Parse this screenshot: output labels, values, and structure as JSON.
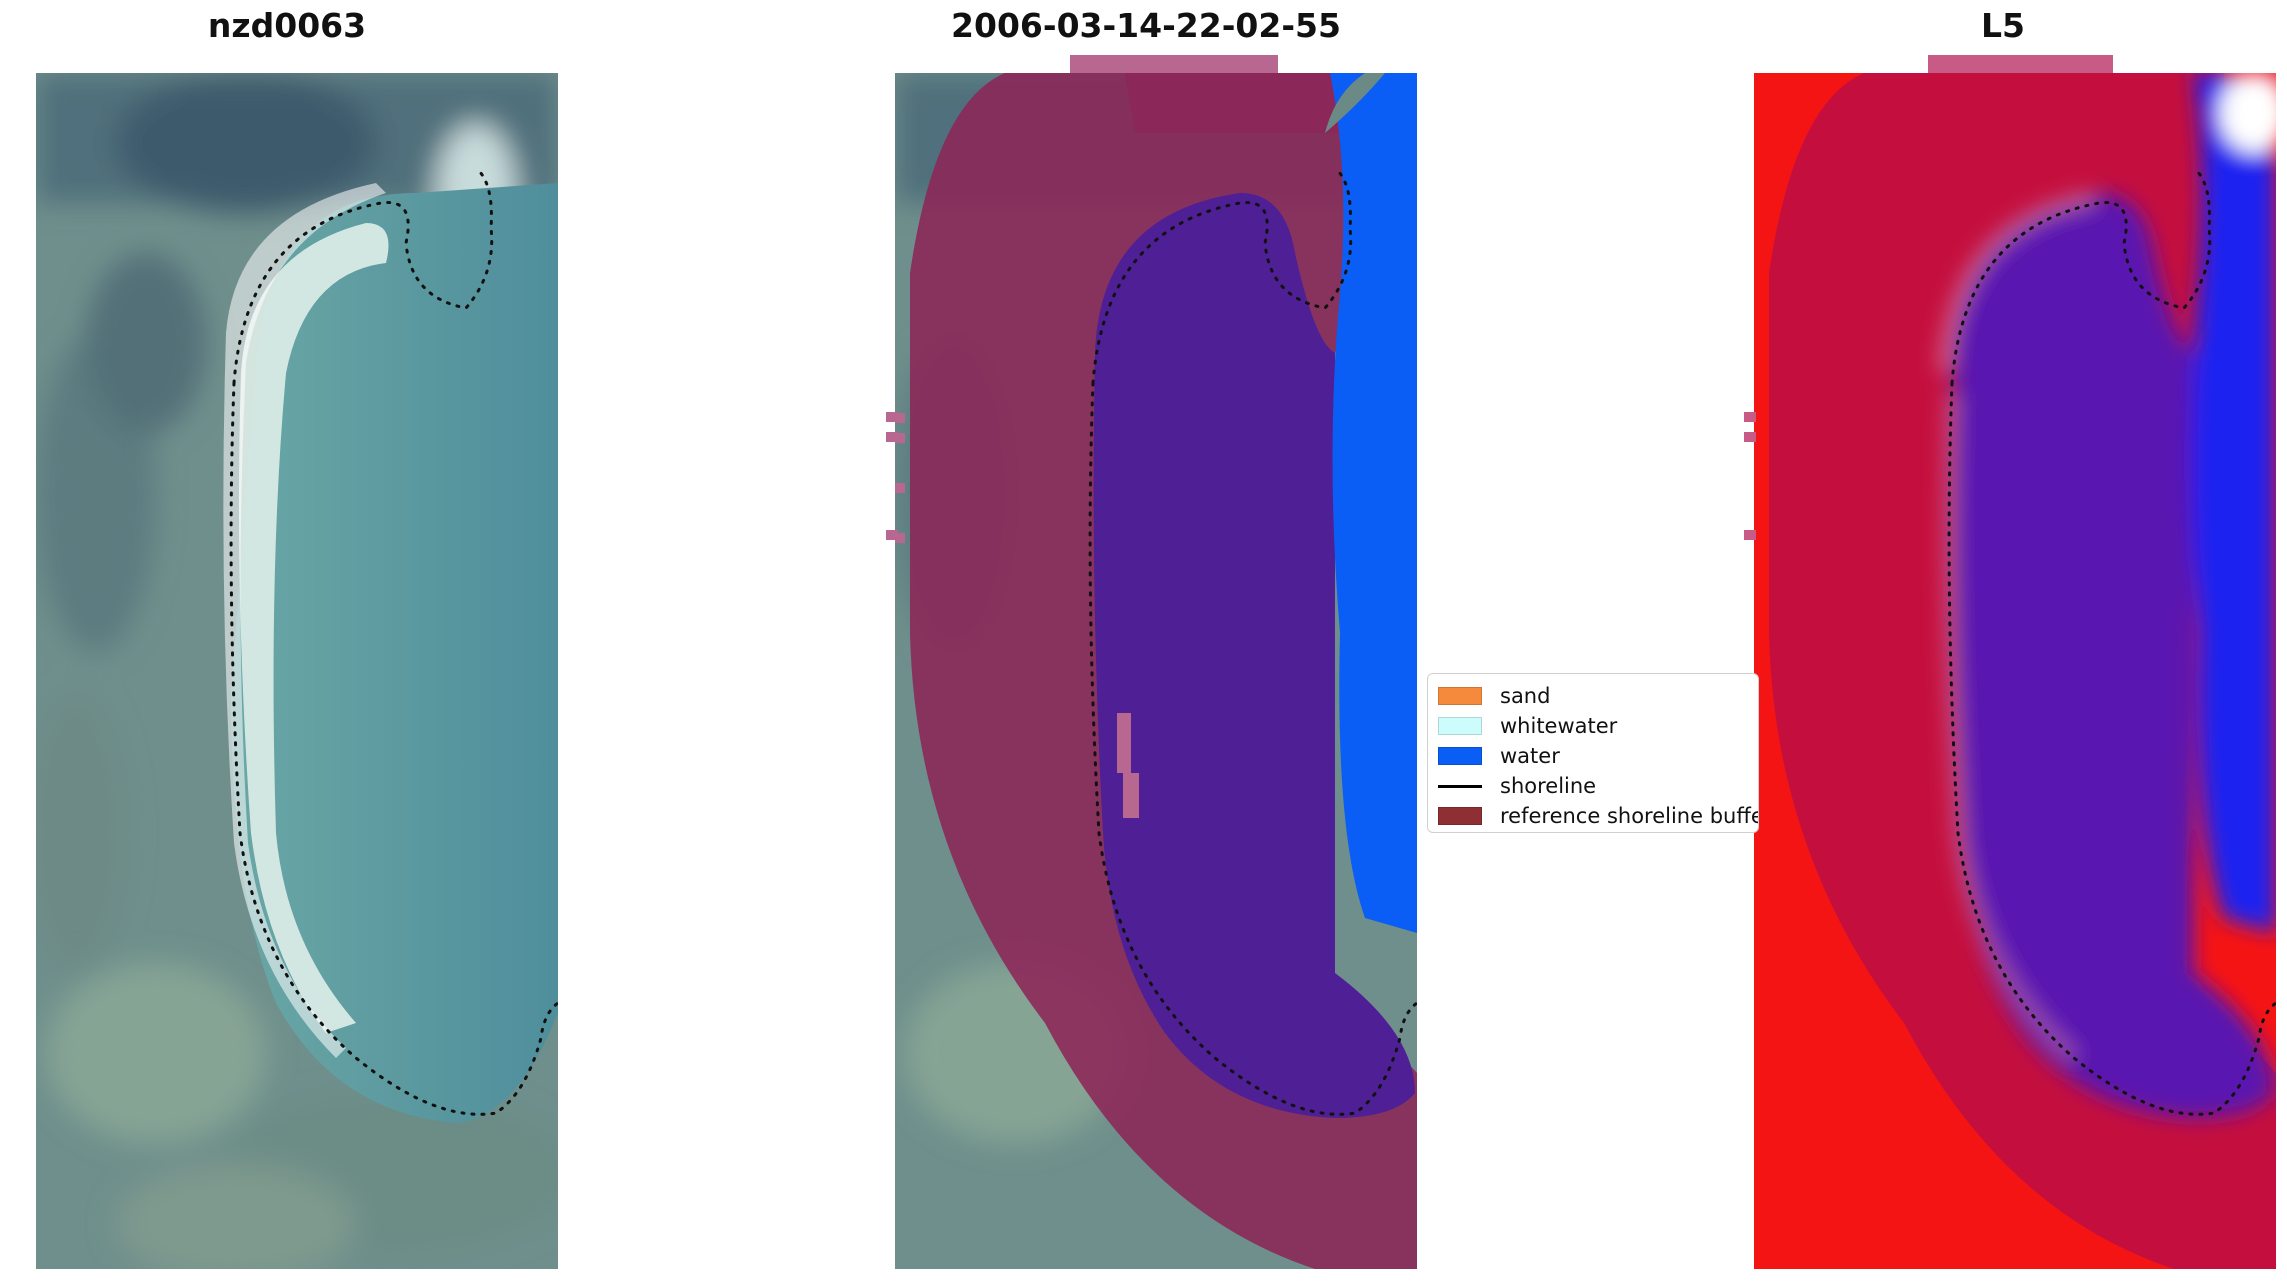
{
  "panels": [
    {
      "title": "nzd0063"
    },
    {
      "title": "2006-03-14-22-02-55"
    },
    {
      "title": "L5"
    }
  ],
  "legend": {
    "items": [
      {
        "label": "sand",
        "color": "#f58a3c",
        "type": "patch"
      },
      {
        "label": "whitewater",
        "color": "#ccfcfc",
        "type": "patch"
      },
      {
        "label": "water",
        "color": "#0a5ef5",
        "type": "patch"
      },
      {
        "label": "shoreline",
        "color": "#000000",
        "type": "line"
      },
      {
        "label": "reference shoreline buffer",
        "color": "#8e2f33",
        "type": "patch"
      }
    ]
  },
  "colors": {
    "buffer_overlay": "#8c2658",
    "buffer_tab": "#b86890",
    "lagoon_overlay": "#4f1f96",
    "water_class": "#0a5ef5",
    "index_red": "#f51414",
    "index_crimson": "#c40f3e",
    "index_purple": "#5a18b0",
    "index_blue": "#1a24f0"
  }
}
